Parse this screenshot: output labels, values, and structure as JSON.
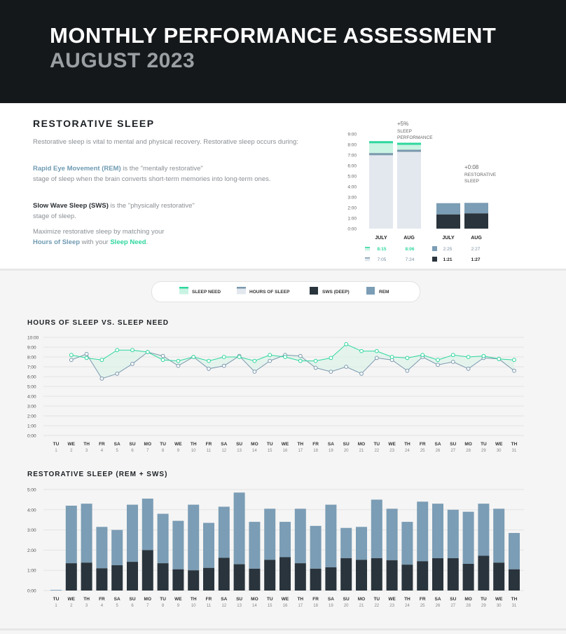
{
  "header": {
    "title": "MONTHLY PERFORMANCE ASSESSMENT",
    "subtitle": "AUGUST 2023"
  },
  "restorative": {
    "title": "RESTORATIVE SLEEP",
    "intro": "Restorative sleep is vital to mental and physical recovery. Restorative sleep occurs during:",
    "rem_term": "Rapid Eye Movement (REM)",
    "rem_desc_1": " is the \"mentally restorative\"",
    "rem_desc_2": "stage of sleep when the brain converts short-term memories into long-term ones.",
    "sws_term": "Slow Wave Sleep (SWS)",
    "sws_desc_1": " is the \"physically restorative\"",
    "sws_desc_2": "stage of sleep.",
    "tip_1": "Maximize restorative sleep by matching your",
    "tip_hours": "Hours of Sleep",
    "tip_with": " with your ",
    "tip_need": "Sleep Need",
    "tip_end": "."
  },
  "colors": {
    "need": "#2ed79e",
    "need_fill": "#c9f3e3",
    "hours": "#7b98ad",
    "hours_fill": "#e3e8ef",
    "sws": "#2a343c",
    "rem": "#7b9db5"
  },
  "chart_data": [
    {
      "type": "bar",
      "name_id": "sleep-performance-summary",
      "categories": [
        "JULY",
        "AUG"
      ],
      "yticks": [
        "0:00",
        "1:00",
        "2:00",
        "3:00",
        "4:00",
        "5:00",
        "6:00",
        "7:00",
        "8:00",
        "9:00"
      ],
      "ylim": [
        0,
        9
      ],
      "need": [
        8.25,
        8.1
      ],
      "hours": [
        7.08,
        7.4
      ],
      "need_labels": [
        "8:15",
        "8:06"
      ],
      "hours_labels": [
        "7:05",
        "7:24"
      ],
      "annotation_value": "+5%",
      "annotation_text_1": "SLEEP",
      "annotation_text_2": "PERFORMANCE"
    },
    {
      "type": "bar",
      "name_id": "restorative-summary",
      "categories": [
        "JULY",
        "AUG"
      ],
      "ylim": [
        0,
        9
      ],
      "total": [
        2.42,
        2.45
      ],
      "sws": [
        1.35,
        1.45
      ],
      "total_labels": [
        "2:25",
        "2:27"
      ],
      "sws_labels": [
        "1:21",
        "1:27"
      ],
      "annotation_value": "+0:08",
      "annotation_text_1": "RESTORATIVE",
      "annotation_text_2": "SLEEP"
    },
    {
      "type": "line",
      "name_id": "hours-vs-need",
      "title": "HOURS OF SLEEP VS. SLEEP NEED",
      "ylim": [
        0,
        10
      ],
      "yticks": [
        "0:00",
        "1:00",
        "2:00",
        "3:00",
        "4:00",
        "5:00",
        "6:00",
        "7:00",
        "8:00",
        "9:00",
        "10:00"
      ],
      "days": [
        "TU",
        "WE",
        "TH",
        "FR",
        "SA",
        "SU",
        "MO",
        "TU",
        "WE",
        "TH",
        "FR",
        "SA",
        "SU",
        "MO",
        "TU",
        "WE",
        "TH",
        "FR",
        "SA",
        "SU",
        "MO",
        "TU",
        "WE",
        "TH",
        "FR",
        "SA",
        "SU",
        "MO",
        "TU",
        "WE",
        "TH"
      ],
      "dates": [
        "1",
        "2",
        "3",
        "4",
        "5",
        "6",
        "7",
        "8",
        "9",
        "10",
        "11",
        "12",
        "13",
        "14",
        "15",
        "16",
        "17",
        "18",
        "19",
        "20",
        "21",
        "22",
        "23",
        "24",
        "25",
        "26",
        "27",
        "28",
        "29",
        "30",
        "31"
      ],
      "series": [
        {
          "name": "SLEEP NEED",
          "values": [
            null,
            8.2,
            7.9,
            7.7,
            8.7,
            8.7,
            8.5,
            7.7,
            7.6,
            8.0,
            7.6,
            8.0,
            8.0,
            7.6,
            8.2,
            8.0,
            7.6,
            7.6,
            7.9,
            9.3,
            8.6,
            8.6,
            8.0,
            7.9,
            8.2,
            7.7,
            8.2,
            8.0,
            8.1,
            7.8,
            7.7
          ]
        },
        {
          "name": "HOURS OF SLEEP",
          "values": [
            null,
            7.7,
            8.3,
            5.8,
            6.3,
            7.3,
            8.5,
            8.1,
            7.1,
            8.0,
            6.8,
            7.1,
            8.1,
            6.5,
            7.6,
            8.2,
            8.1,
            6.9,
            6.5,
            7.0,
            6.3,
            7.9,
            7.7,
            6.6,
            8.0,
            7.2,
            7.5,
            6.8,
            7.9,
            7.8,
            6.6
          ]
        }
      ]
    },
    {
      "type": "bar",
      "name_id": "restorative-daily",
      "title": "RESTORATIVE SLEEP (REM + SWS)",
      "ylim": [
        0,
        5
      ],
      "yticks": [
        "0:00",
        "1:00",
        "2:00",
        "3:00",
        "4:00",
        "5:00"
      ],
      "days": [
        "TU",
        "WE",
        "TH",
        "FR",
        "SA",
        "SU",
        "MO",
        "TU",
        "WE",
        "TH",
        "FR",
        "SA",
        "SU",
        "MO",
        "TU",
        "WE",
        "TH",
        "FR",
        "SA",
        "SU",
        "MO",
        "TU",
        "WE",
        "TH",
        "FR",
        "SA",
        "SU",
        "MO",
        "TU",
        "WE",
        "TH"
      ],
      "dates": [
        "1",
        "2",
        "3",
        "4",
        "5",
        "6",
        "7",
        "8",
        "9",
        "10",
        "11",
        "12",
        "13",
        "14",
        "15",
        "16",
        "17",
        "18",
        "19",
        "20",
        "21",
        "22",
        "23",
        "24",
        "25",
        "26",
        "27",
        "28",
        "29",
        "30",
        "31"
      ],
      "total": [
        0.03,
        4.2,
        4.3,
        3.15,
        3.0,
        4.25,
        4.55,
        3.8,
        3.45,
        4.25,
        3.35,
        4.15,
        4.85,
        3.4,
        4.05,
        3.4,
        4.05,
        3.2,
        4.25,
        3.1,
        3.15,
        4.5,
        4.05,
        3.4,
        4.4,
        4.3,
        4.0,
        3.9,
        4.3,
        4.05,
        2.85
      ],
      "sws": [
        0.03,
        1.35,
        1.38,
        1.1,
        1.25,
        1.42,
        2.0,
        1.35,
        1.05,
        1.0,
        1.12,
        1.62,
        1.3,
        1.08,
        1.52,
        1.65,
        1.35,
        1.08,
        1.15,
        1.6,
        1.52,
        1.6,
        1.5,
        1.28,
        1.45,
        1.6,
        1.6,
        1.32,
        1.72,
        1.38,
        1.05
      ]
    }
  ],
  "legend": {
    "need": "SLEEP NEED",
    "hours": "HOURS OF SLEEP",
    "sws": "SWS (DEEP)",
    "rem": "REM"
  }
}
